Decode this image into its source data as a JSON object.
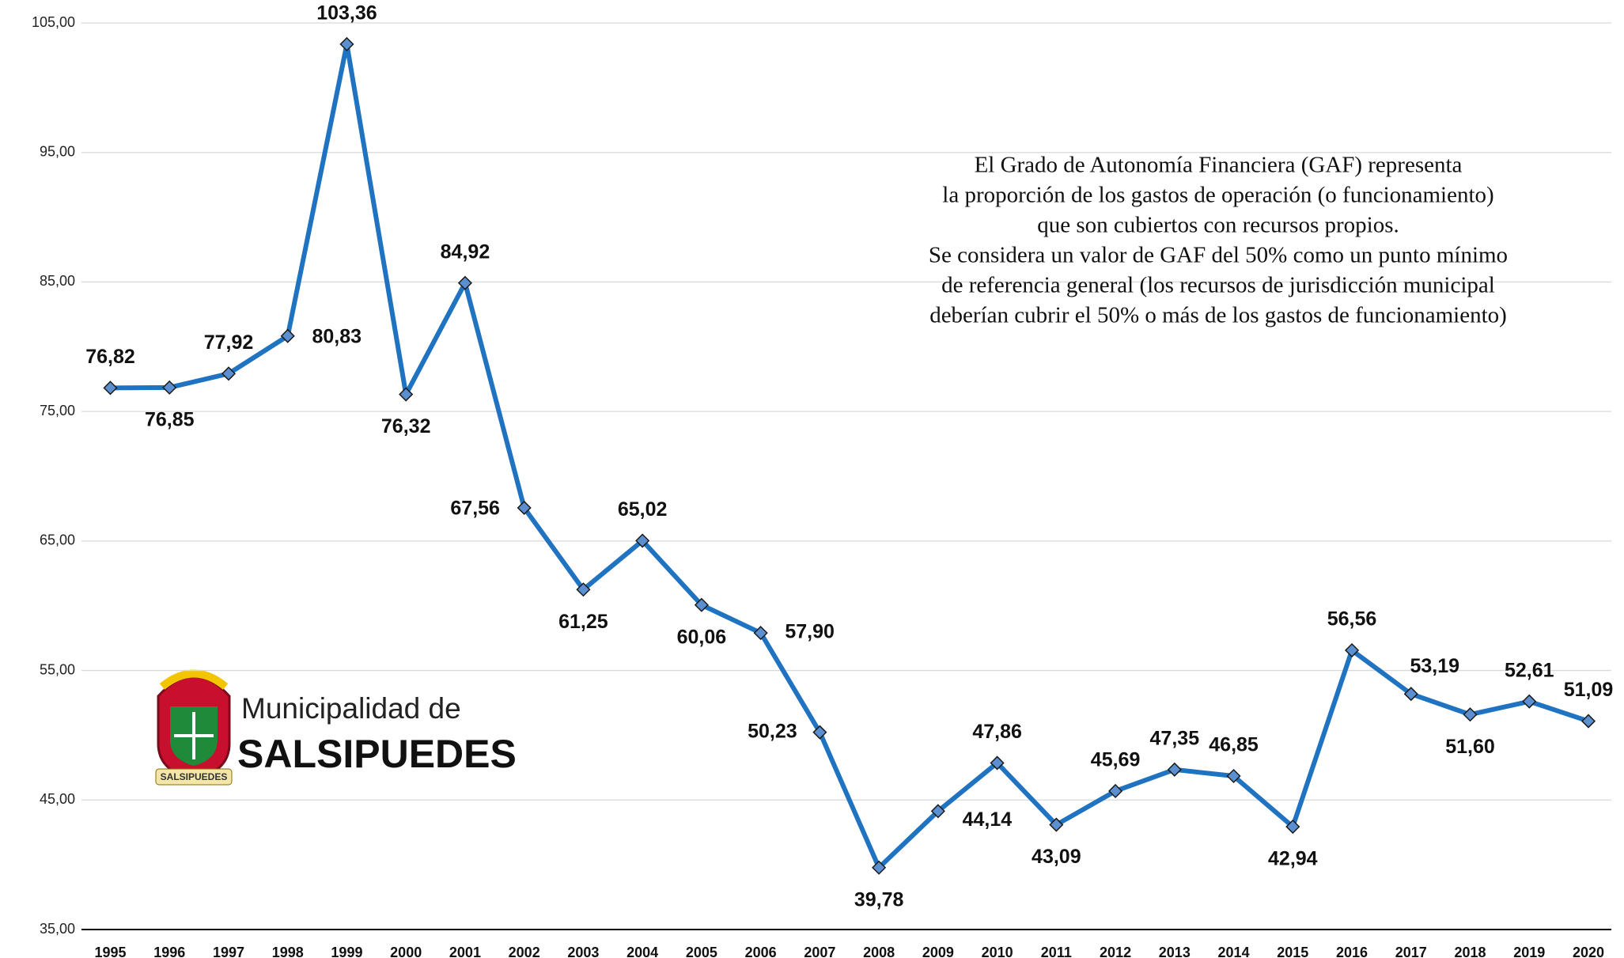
{
  "chart_data": {
    "type": "line",
    "categories": [
      "1995",
      "1996",
      "1997",
      "1998",
      "1999",
      "2000",
      "2001",
      "2002",
      "2003",
      "2004",
      "2005",
      "2006",
      "2007",
      "2008",
      "2009",
      "2010",
      "2011",
      "2012",
      "2013",
      "2014",
      "2015",
      "2016",
      "2017",
      "2018",
      "2019",
      "2020"
    ],
    "series": [
      {
        "color": "#1f73c0",
        "marker_color": "#5b8fd0",
        "values": [
          76.82,
          76.85,
          77.92,
          80.83,
          103.36,
          76.32,
          84.92,
          67.56,
          61.25,
          65.02,
          60.06,
          57.9,
          50.23,
          39.78,
          44.14,
          47.86,
          43.09,
          45.69,
          47.35,
          46.85,
          42.94,
          56.56,
          53.19,
          51.6,
          52.61,
          51.09
        ],
        "value_labels": [
          "76,82",
          "76,85",
          "77,92",
          "80,83",
          "103,36",
          "76,32",
          "84,92",
          "67,56",
          "61,25",
          "65,02",
          "60,06",
          "57,90",
          "50,23",
          "39,78",
          "44,14",
          "47,86",
          "43,09",
          "45,69",
          "47,35",
          "46,85",
          "42,94",
          "56,56",
          "53,19",
          "51,60",
          "52,61",
          "51,09"
        ]
      }
    ],
    "ylim": [
      35,
      105
    ],
    "yticks": [
      {
        "value": 35,
        "label": "35,00"
      },
      {
        "value": 45,
        "label": "45,00"
      },
      {
        "value": 55,
        "label": "55,00"
      },
      {
        "value": 65,
        "label": "65,00"
      },
      {
        "value": 75,
        "label": "75,00"
      },
      {
        "value": 85,
        "label": "85,00"
      },
      {
        "value": 95,
        "label": "95,00"
      },
      {
        "value": 105,
        "label": "105,00"
      }
    ],
    "grid": true,
    "annotation": [
      "El Grado de Autonomía Financiera (GAF) representa",
      "la proporción de los gastos de operación (o funcionamiento)",
      "que son cubiertos con recursos propios.",
      "Se considera un valor de GAF del 50% como un punto mínimo",
      "de referencia general (los recursos de jurisdicción municipal",
      "deberían cubrir el 50% o más de los gastos de funcionamiento)"
    ]
  },
  "logo": {
    "line1": "Municipalidad de",
    "line2": "SALSIPUEDES",
    "ribbon": "SALSIPUEDES"
  }
}
